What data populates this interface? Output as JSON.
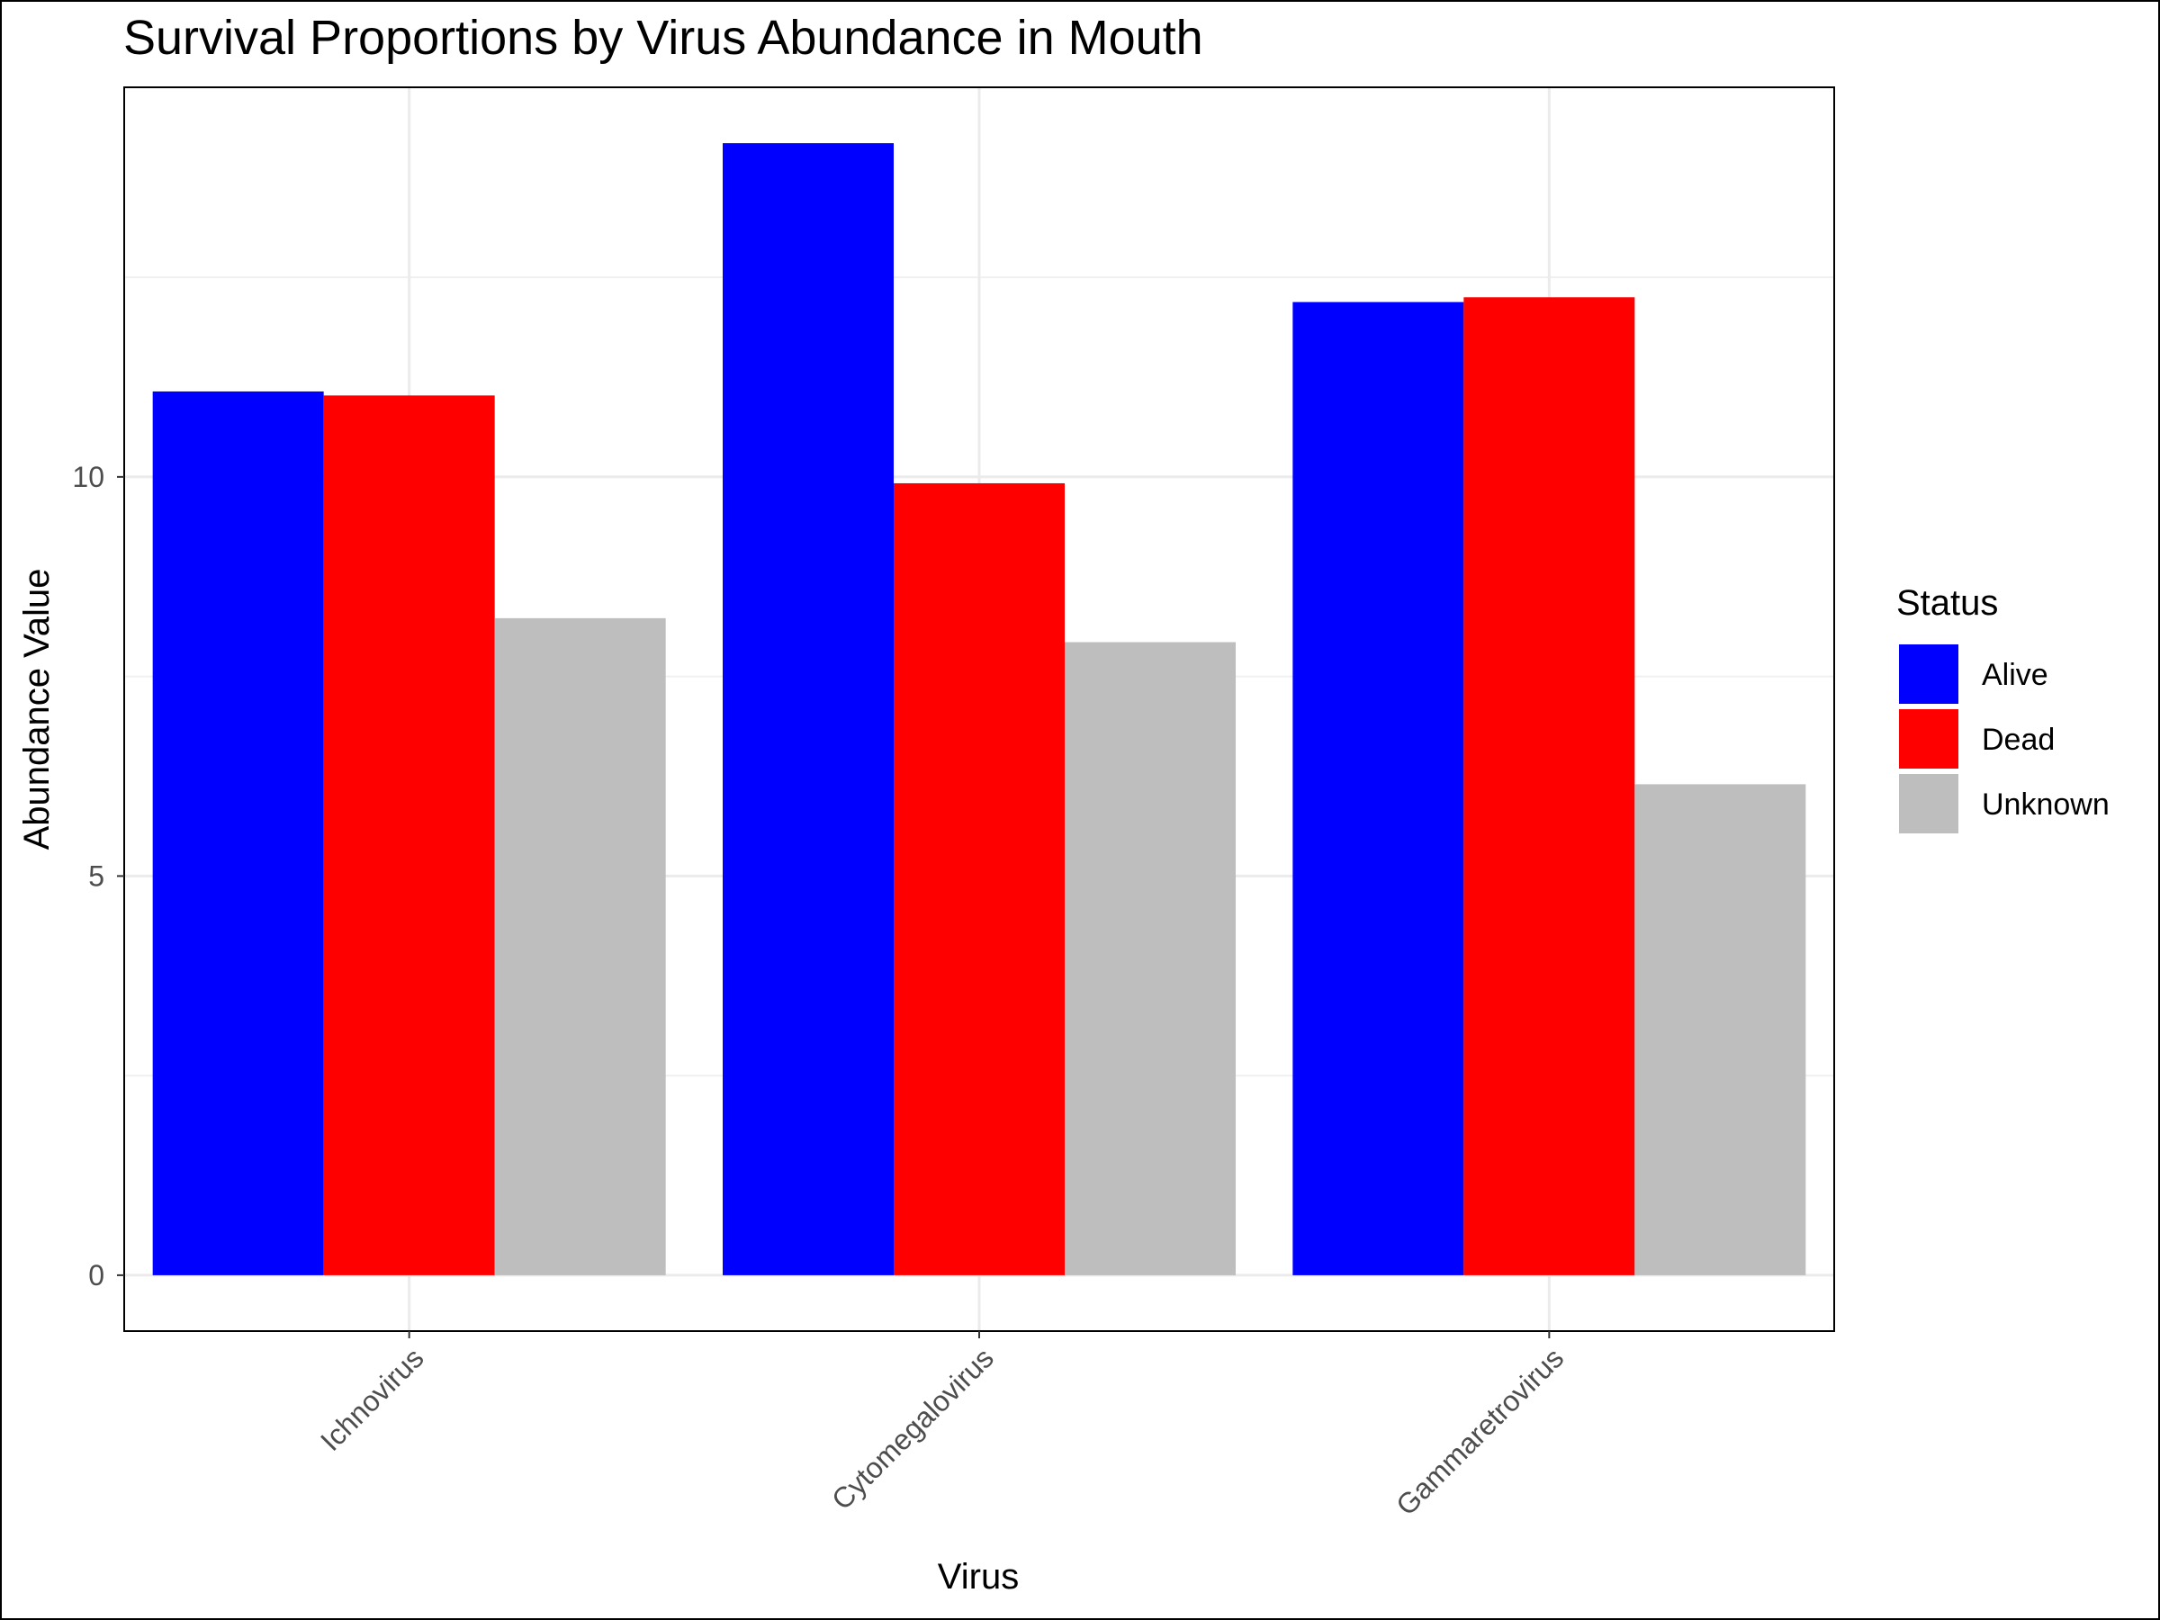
{
  "chart_data": {
    "type": "bar",
    "title": "Survival Proportions by Virus Abundance in Mouth",
    "xlabel": "Virus",
    "ylabel": "Abundance Value",
    "categories": [
      "Ichnovirus",
      "Cytomegalovirus",
      "Gammaretrovirus"
    ],
    "series": [
      {
        "name": "Alive",
        "color": "#0000ff",
        "values": [
          11.07,
          14.18,
          12.19
        ]
      },
      {
        "name": "Dead",
        "color": "#ff0000",
        "values": [
          11.02,
          9.92,
          12.25
        ]
      },
      {
        "name": "Unknown",
        "color": "#bebebe",
        "values": [
          8.23,
          7.93,
          6.15
        ]
      }
    ],
    "yticks": [
      0,
      5,
      10
    ],
    "ylim": [
      -0.7,
      14.88
    ],
    "grid": true,
    "legend": {
      "title": "Status",
      "position": "right"
    }
  }
}
